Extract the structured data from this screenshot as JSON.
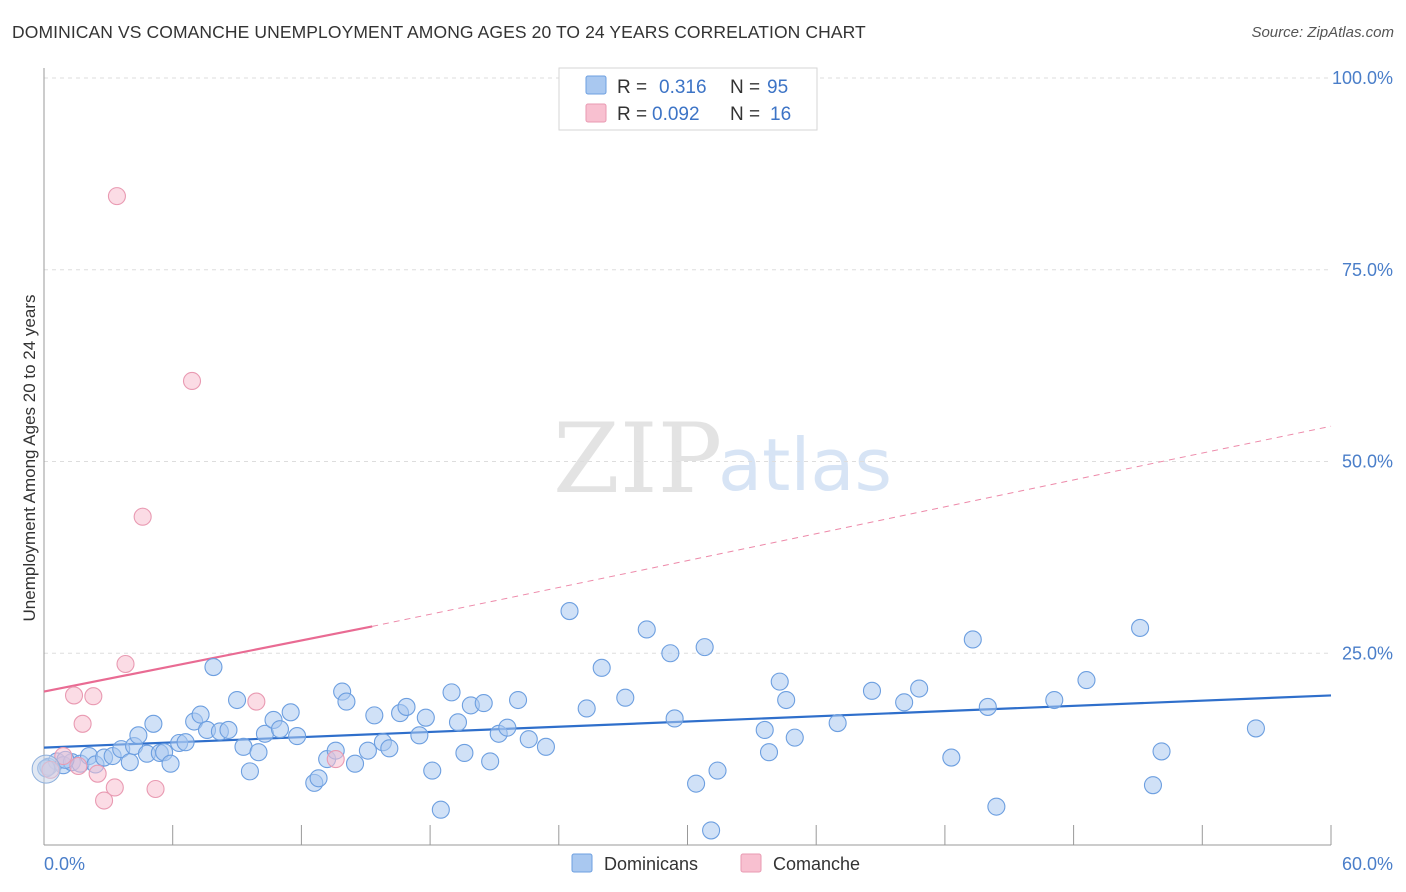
{
  "title": "DOMINICAN VS COMANCHE UNEMPLOYMENT AMONG AGES 20 TO 24 YEARS CORRELATION CHART",
  "source": "Source: ZipAtlas.com",
  "watermark": {
    "zip": "ZIP",
    "atlas": "atlas"
  },
  "legend": {
    "r_label": "R =",
    "n_label": "N =",
    "series": [
      {
        "name": "Dominicans",
        "r": "0.316",
        "n": "95",
        "color": "#a9c8f0",
        "stroke": "#6d9fe0"
      },
      {
        "name": "Comanche",
        "r": "0.092",
        "n": "16",
        "color": "#f8c0d0",
        "stroke": "#e99ab2"
      }
    ]
  },
  "chart_data": {
    "type": "scatter",
    "title": "DOMINICAN VS COMANCHE UNEMPLOYMENT AMONG AGES 20 TO 24 YEARS CORRELATION CHART",
    "xlabel": "",
    "ylabel": "Unemployment Among Ages 20 to 24 years",
    "xlim": [
      0,
      60
    ],
    "ylim": [
      0,
      100
    ],
    "x_tick_labels": [
      "0.0%",
      "60.0%"
    ],
    "y_tick_labels": [
      "100.0%",
      "75.0%",
      "50.0%",
      "25.0%"
    ],
    "y_tick_values": [
      100,
      75,
      50,
      25
    ],
    "series": [
      {
        "name": "Dominicans",
        "color": "#a9c8f0",
        "stroke": "#6d9fe0",
        "trend": {
          "x0": 0,
          "y0": 12.7,
          "x1": 60,
          "y1": 19.5,
          "color": "#2f6fcb"
        },
        "points": [
          [
            0.2,
            10.2
          ],
          [
            0.6,
            10.9
          ],
          [
            0.9,
            10.4
          ],
          [
            1.3,
            10.8
          ],
          [
            1.7,
            10.6
          ],
          [
            2.1,
            11.6
          ],
          [
            2.4,
            10.5
          ],
          [
            2.8,
            11.4
          ],
          [
            3.2,
            11.6
          ],
          [
            3.6,
            12.5
          ],
          [
            4.0,
            10.8
          ],
          [
            4.2,
            12.9
          ],
          [
            4.4,
            14.3
          ],
          [
            4.8,
            11.9
          ],
          [
            5.1,
            15.8
          ],
          [
            5.4,
            12.0
          ],
          [
            5.6,
            12.1
          ],
          [
            5.9,
            10.6
          ],
          [
            6.3,
            13.3
          ],
          [
            6.6,
            13.4
          ],
          [
            7.0,
            16.1
          ],
          [
            7.3,
            17.0
          ],
          [
            7.6,
            15.0
          ],
          [
            7.9,
            23.2
          ],
          [
            8.2,
            14.8
          ],
          [
            8.6,
            15.0
          ],
          [
            9.0,
            18.9
          ],
          [
            9.3,
            12.8
          ],
          [
            9.6,
            9.6
          ],
          [
            10.0,
            12.1
          ],
          [
            10.3,
            14.5
          ],
          [
            10.7,
            16.3
          ],
          [
            11.0,
            15.1
          ],
          [
            11.5,
            17.3
          ],
          [
            11.8,
            14.2
          ],
          [
            12.6,
            8.1
          ],
          [
            12.8,
            8.7
          ],
          [
            13.2,
            11.2
          ],
          [
            13.6,
            12.3
          ],
          [
            13.9,
            20.0
          ],
          [
            14.1,
            18.7
          ],
          [
            14.5,
            10.6
          ],
          [
            15.1,
            12.3
          ],
          [
            15.4,
            16.9
          ],
          [
            15.8,
            13.4
          ],
          [
            16.1,
            12.6
          ],
          [
            16.6,
            17.2
          ],
          [
            16.9,
            18.0
          ],
          [
            17.5,
            14.3
          ],
          [
            17.8,
            16.6
          ],
          [
            18.1,
            9.7
          ],
          [
            18.5,
            4.6
          ],
          [
            19.0,
            19.9
          ],
          [
            19.3,
            16.0
          ],
          [
            19.6,
            12.0
          ],
          [
            19.9,
            18.2
          ],
          [
            20.5,
            18.5
          ],
          [
            20.8,
            10.9
          ],
          [
            21.2,
            14.5
          ],
          [
            21.6,
            15.3
          ],
          [
            22.1,
            18.9
          ],
          [
            22.6,
            13.8
          ],
          [
            23.4,
            12.8
          ],
          [
            24.5,
            30.5
          ],
          [
            25.3,
            17.8
          ],
          [
            26.0,
            23.1
          ],
          [
            27.1,
            19.2
          ],
          [
            28.1,
            28.1
          ],
          [
            29.2,
            25.0
          ],
          [
            29.4,
            16.5
          ],
          [
            30.4,
            8.0
          ],
          [
            30.8,
            25.8
          ],
          [
            31.1,
            1.9
          ],
          [
            31.4,
            9.7
          ],
          [
            33.6,
            15.0
          ],
          [
            33.8,
            12.1
          ],
          [
            34.3,
            21.3
          ],
          [
            34.6,
            18.9
          ],
          [
            35.0,
            14.0
          ],
          [
            37.0,
            15.9
          ],
          [
            38.6,
            20.1
          ],
          [
            40.1,
            18.6
          ],
          [
            40.8,
            20.4
          ],
          [
            42.3,
            11.4
          ],
          [
            43.3,
            26.8
          ],
          [
            44.0,
            18.0
          ],
          [
            44.4,
            5.0
          ],
          [
            47.1,
            18.9
          ],
          [
            48.6,
            21.5
          ],
          [
            51.1,
            28.3
          ],
          [
            51.7,
            7.8
          ],
          [
            52.1,
            12.2
          ],
          [
            56.5,
            15.2
          ],
          [
            0.1,
            10.0
          ],
          [
            1.0,
            11.1
          ]
        ]
      },
      {
        "name": "Comanche",
        "color": "#f8c0d0",
        "stroke": "#e99ab2",
        "trend": {
          "x0": 0,
          "y0": 20.0,
          "x1": 15.3,
          "y1": 28.5,
          "dash_x1": 60,
          "dash_y1": 54.6,
          "color": "#e96b93"
        },
        "points": [
          [
            0.3,
            9.8
          ],
          [
            0.9,
            11.6
          ],
          [
            1.6,
            10.3
          ],
          [
            1.4,
            19.5
          ],
          [
            1.8,
            15.8
          ],
          [
            2.3,
            19.4
          ],
          [
            2.8,
            5.8
          ],
          [
            3.3,
            7.5
          ],
          [
            3.8,
            23.6
          ],
          [
            4.6,
            42.8
          ],
          [
            5.2,
            7.3
          ],
          [
            6.9,
            60.5
          ],
          [
            3.4,
            84.6
          ],
          [
            9.9,
            18.7
          ],
          [
            13.6,
            11.2
          ],
          [
            2.5,
            9.3
          ]
        ]
      }
    ]
  }
}
